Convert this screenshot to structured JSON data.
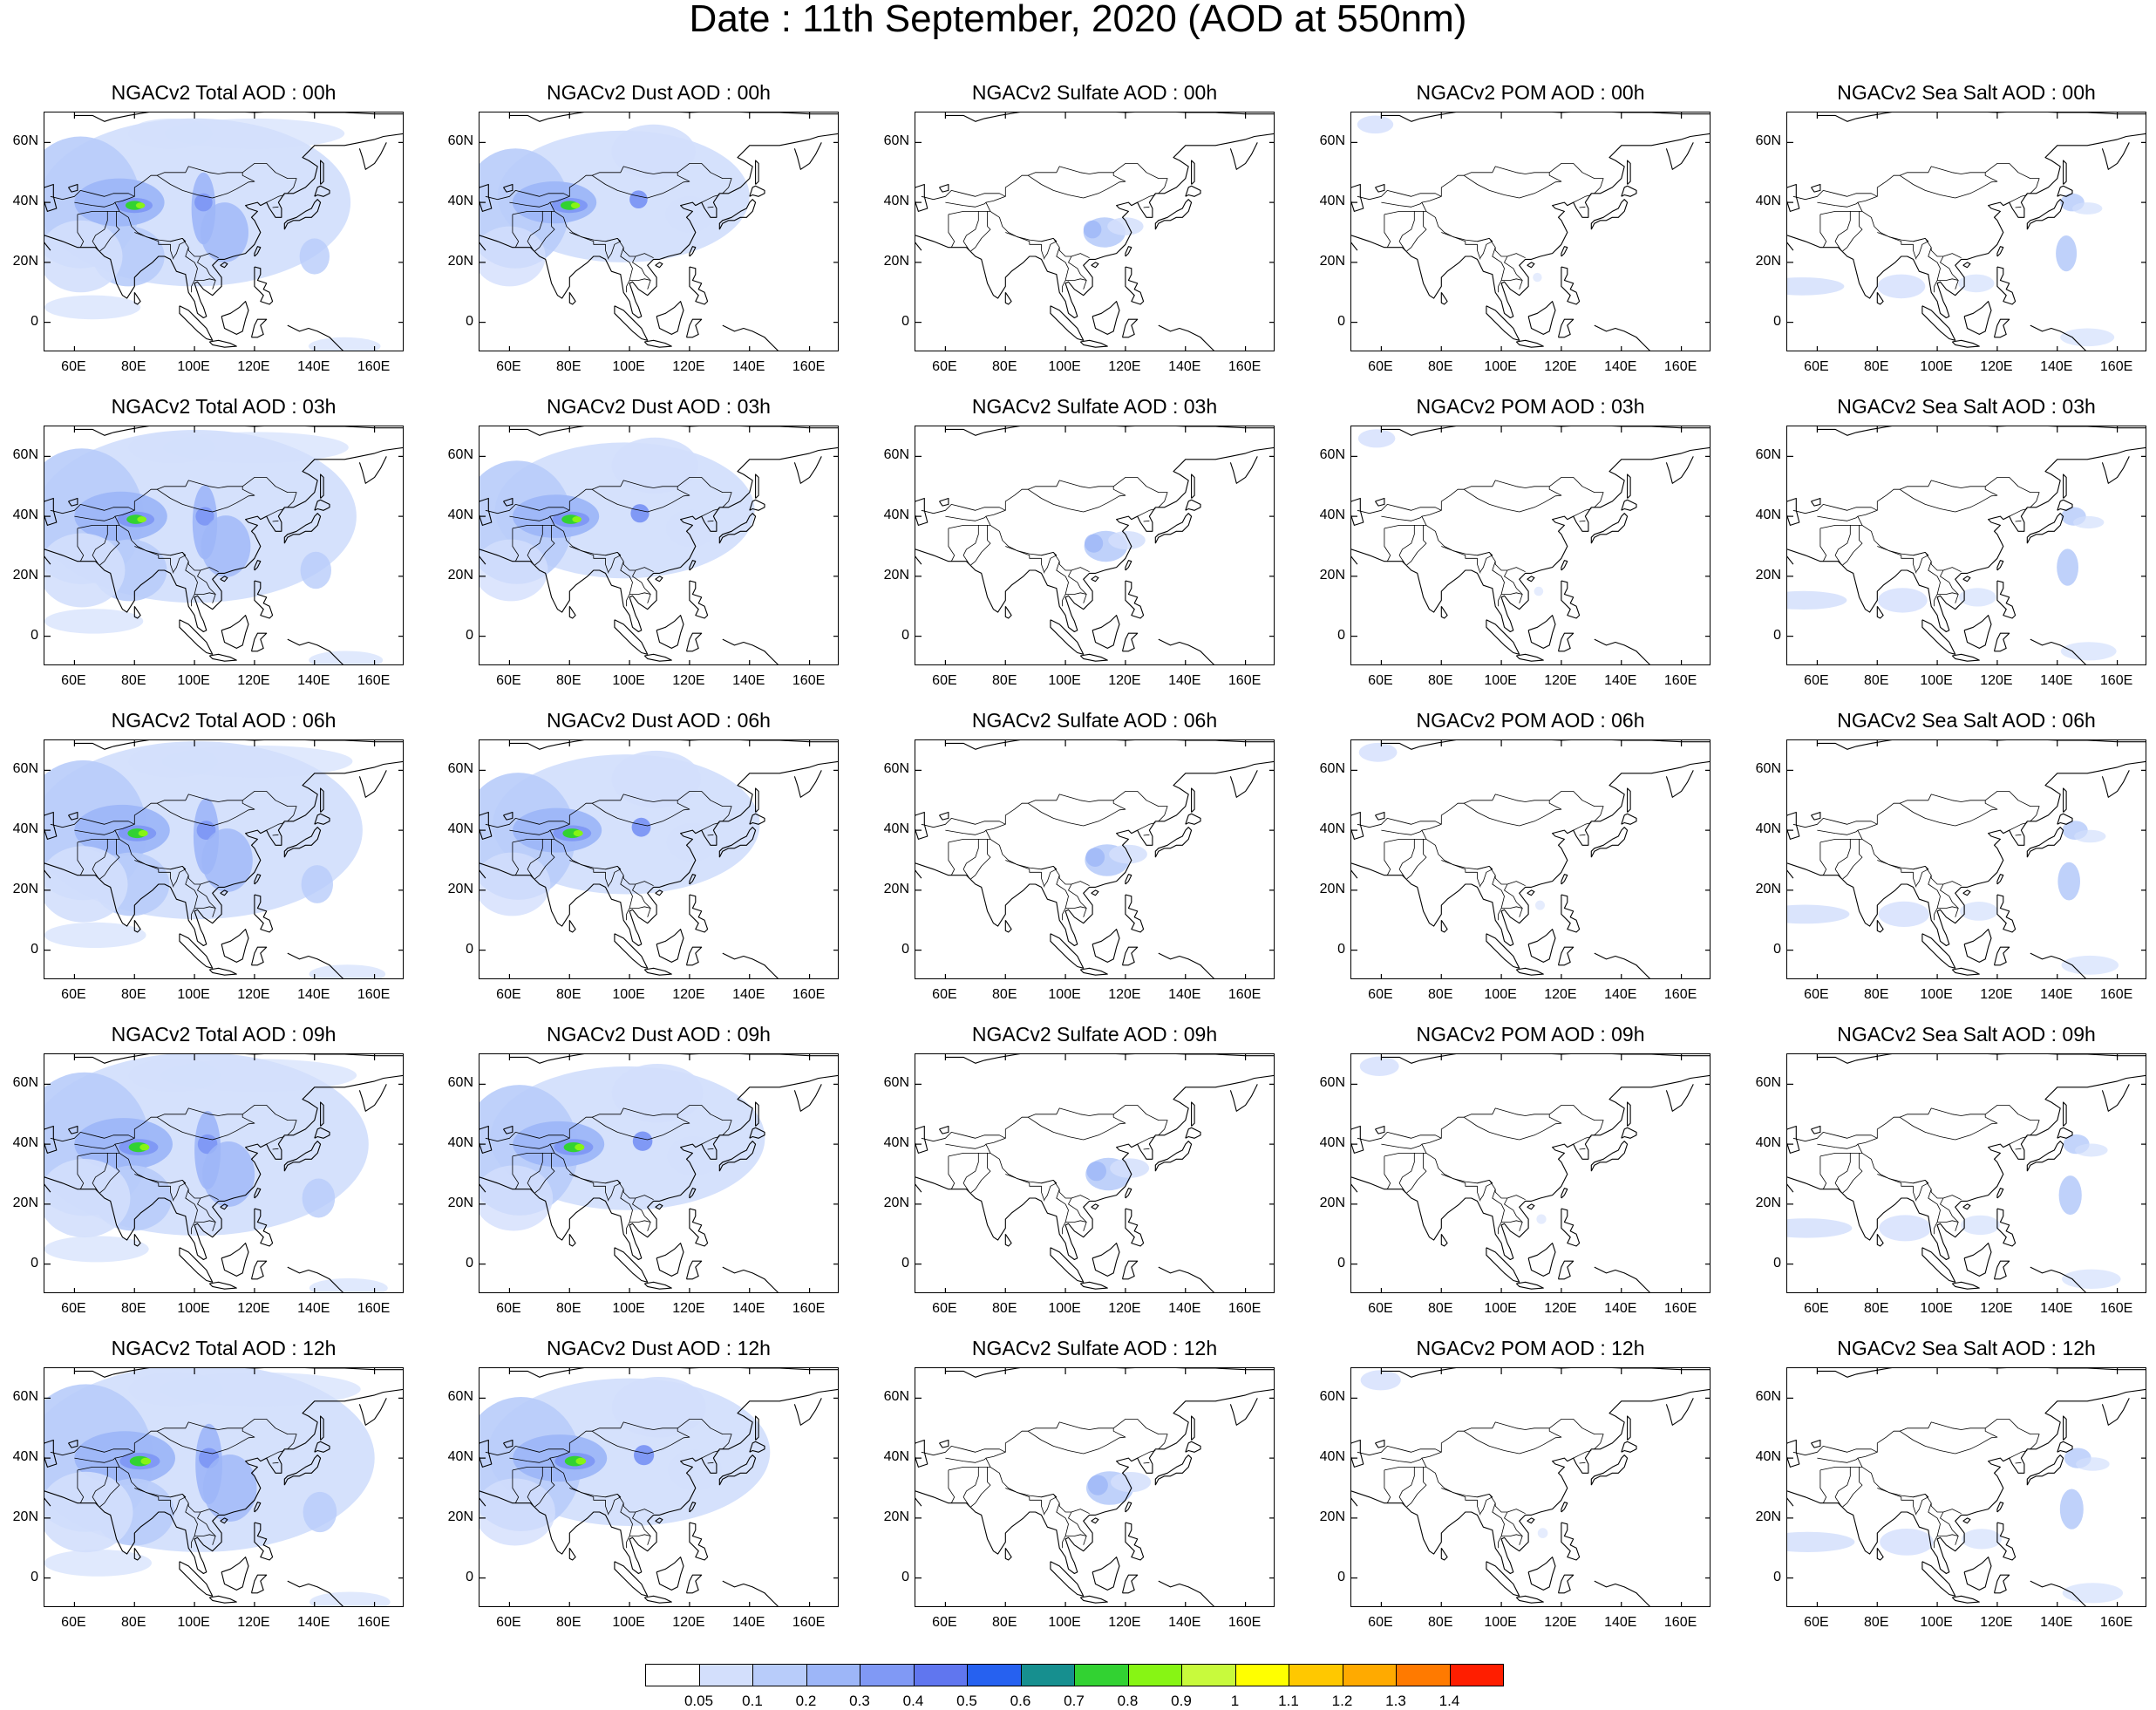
{
  "title": "Date : 11th September, 2020 (AOD at 550nm)",
  "axes": {
    "lat_ticks": [
      "60N",
      "40N",
      "20N",
      "0"
    ],
    "lon_ticks": [
      "60E",
      "80E",
      "100E",
      "120E",
      "140E",
      "160E"
    ],
    "lat_range": [
      -10,
      70
    ],
    "lon_range": [
      50,
      170
    ],
    "lat_values": [
      60,
      40,
      20,
      0
    ],
    "lon_values": [
      60,
      80,
      100,
      120,
      140,
      160
    ]
  },
  "panels": [
    {
      "title": "NGACv2 Total AOD : 00h",
      "species": "total",
      "hour": 0
    },
    {
      "title": "NGACv2 Dust AOD : 00h",
      "species": "dust",
      "hour": 0
    },
    {
      "title": "NGACv2 Sulfate AOD : 00h",
      "species": "sulfate",
      "hour": 0
    },
    {
      "title": "NGACv2 POM AOD : 00h",
      "species": "pom",
      "hour": 0
    },
    {
      "title": "NGACv2 Sea Salt AOD : 00h",
      "species": "seasalt",
      "hour": 0
    },
    {
      "title": "NGACv2 Total AOD : 03h",
      "species": "total",
      "hour": 3
    },
    {
      "title": "NGACv2 Dust AOD : 03h",
      "species": "dust",
      "hour": 3
    },
    {
      "title": "NGACv2 Sulfate AOD : 03h",
      "species": "sulfate",
      "hour": 3
    },
    {
      "title": "NGACv2 POM AOD : 03h",
      "species": "pom",
      "hour": 3
    },
    {
      "title": "NGACv2 Sea Salt AOD : 03h",
      "species": "seasalt",
      "hour": 3
    },
    {
      "title": "NGACv2 Total AOD : 06h",
      "species": "total",
      "hour": 6
    },
    {
      "title": "NGACv2 Dust AOD : 06h",
      "species": "dust",
      "hour": 6
    },
    {
      "title": "NGACv2 Sulfate AOD : 06h",
      "species": "sulfate",
      "hour": 6
    },
    {
      "title": "NGACv2 POM AOD : 06h",
      "species": "pom",
      "hour": 6
    },
    {
      "title": "NGACv2 Sea Salt AOD : 06h",
      "species": "seasalt",
      "hour": 6
    },
    {
      "title": "NGACv2 Total AOD : 09h",
      "species": "total",
      "hour": 9
    },
    {
      "title": "NGACv2 Dust AOD : 09h",
      "species": "dust",
      "hour": 9
    },
    {
      "title": "NGACv2 Sulfate AOD : 09h",
      "species": "sulfate",
      "hour": 9
    },
    {
      "title": "NGACv2 POM AOD : 09h",
      "species": "pom",
      "hour": 9
    },
    {
      "title": "NGACv2 Sea Salt  AOD : 09h",
      "species": "seasalt",
      "hour": 9
    },
    {
      "title": "NGACv2 Total AOD  : 12h",
      "species": "total",
      "hour": 12
    },
    {
      "title": "NGACv2 Dust AOD : 12h",
      "species": "dust",
      "hour": 12
    },
    {
      "title": "NGACv2 Sulfate AOD : 12h",
      "species": "sulfate",
      "hour": 12
    },
    {
      "title": "NGACv2 POM  AOD : 12h",
      "species": "pom",
      "hour": 12
    },
    {
      "title": "NGACv2 Sea Salt  AOD : 12h",
      "species": "seasalt",
      "hour": 12
    }
  ],
  "colorbar": {
    "labels": [
      "0.05",
      "0.1",
      "0.2",
      "0.3",
      "0.4",
      "0.5",
      "0.6",
      "0.7",
      "0.8",
      "0.9",
      "1",
      "1.1",
      "1.2",
      "1.3",
      "1.4"
    ],
    "colors": [
      "#ffffff",
      "#d3dffc",
      "#b8ccfa",
      "#9db6f8",
      "#8099f5",
      "#6076ef",
      "#2661f0",
      "#168f8f",
      "#32d232",
      "#87f514",
      "#c8fa3c",
      "#ffff00",
      "#ffc800",
      "#ffaa00",
      "#ff7a00",
      "#ff1e00"
    ]
  },
  "land_color": "#ffffff",
  "coast_color": "#000000"
}
